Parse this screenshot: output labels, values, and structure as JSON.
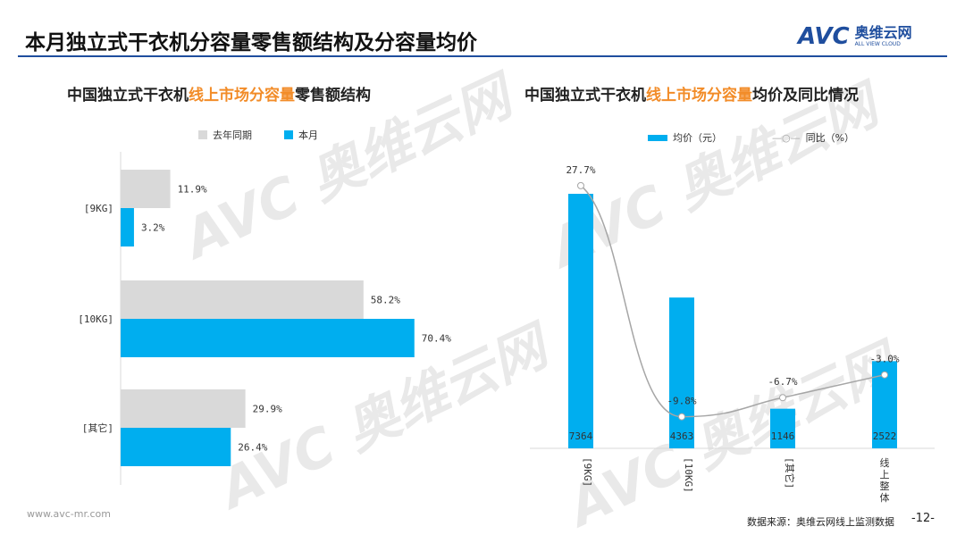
{
  "header": {
    "title": "本月独立式干衣机分容量零售额结构及分容量均价",
    "logo_text": "AVC",
    "logo_cn": "奥维云网",
    "logo_en": "ALL VIEW CLOUD"
  },
  "footer": {
    "url": "www.avc-mr.com",
    "source": "数据来源：奥维云网线上监测数据",
    "page": "-12-"
  },
  "colors": {
    "accent": "#00aeef",
    "previous": "#d9d9d9",
    "highlight": "#f28c28",
    "line": "#a6a6a6"
  },
  "chart_data": [
    {
      "type": "bar",
      "orientation": "horizontal",
      "title_parts": [
        "中国独立式干衣机",
        "线上市场分容量",
        "零售额结构"
      ],
      "categories": [
        "[9KG]",
        "[10KG]",
        "[其它]"
      ],
      "series": [
        {
          "name": "去年同期",
          "values": [
            11.9,
            58.2,
            29.9
          ],
          "labels": [
            "11.9%",
            "58.2%",
            "29.9%"
          ]
        },
        {
          "name": "本月",
          "values": [
            3.2,
            70.4,
            26.4
          ],
          "labels": [
            "3.2%",
            "70.4%",
            "26.4%"
          ]
        }
      ],
      "legend": "top",
      "grid": false
    },
    {
      "type": "bar+line",
      "title_parts": [
        "中国独立式干衣机",
        "线上市场分容量",
        "均价及同比情况"
      ],
      "categories": [
        "[9KG]",
        "[10KG]",
        "[其它]",
        "线上整体"
      ],
      "series": [
        {
          "name": "均价（元）",
          "type": "bar",
          "values": [
            7364,
            4363,
            1146,
            2522
          ],
          "labels": [
            "7364",
            "4363",
            "1146",
            "2522"
          ]
        },
        {
          "name": "同比（%）",
          "type": "line",
          "values": [
            27.7,
            -9.8,
            -6.7,
            -3.0
          ],
          "labels": [
            "27.7%",
            "-9.8%",
            "-6.7%",
            "-3.0%"
          ]
        }
      ],
      "legend": "top",
      "grid": false
    }
  ]
}
